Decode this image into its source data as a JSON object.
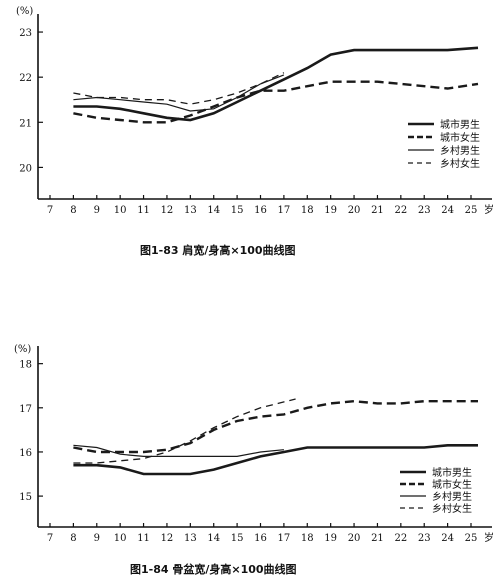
{
  "chart_data": [
    {
      "type": "line",
      "caption": "图1-83   肩宽/身高×100曲线图",
      "unit_label": "(%)",
      "x_unit_label": "岁",
      "x_ticks": [
        "7",
        "8",
        "9",
        "10",
        "11",
        "12",
        "13",
        "14",
        "15",
        "16",
        "17",
        "18",
        "19",
        "20",
        "21",
        "22",
        "23",
        "24",
        "25"
      ],
      "y_ticks": [
        "20",
        "21",
        "22",
        "23"
      ],
      "xlim": [
        7,
        25.8
      ],
      "ylim": [
        19.3,
        23.4
      ],
      "grid": false,
      "legend_position": "right",
      "series": [
        {
          "name": "城市男生",
          "style": "solid-thick",
          "x": [
            8,
            9,
            10,
            11,
            12,
            13,
            14,
            15,
            16,
            17,
            18,
            19,
            20,
            21,
            22,
            23,
            24,
            25.3
          ],
          "y": [
            21.35,
            21.35,
            21.3,
            21.2,
            21.1,
            21.05,
            21.2,
            21.45,
            21.7,
            21.95,
            22.2,
            22.5,
            22.6,
            22.6,
            22.6,
            22.6,
            22.6,
            22.65
          ]
        },
        {
          "name": "城市女生",
          "style": "dashed-thick",
          "x": [
            8,
            9,
            10,
            11,
            12,
            13,
            14,
            15,
            16,
            17,
            18,
            19,
            20,
            21,
            22,
            23,
            24,
            25.3
          ],
          "y": [
            21.2,
            21.1,
            21.05,
            21.0,
            21.0,
            21.15,
            21.35,
            21.55,
            21.7,
            21.7,
            21.8,
            21.9,
            21.9,
            21.9,
            21.85,
            21.8,
            21.75,
            21.85
          ]
        },
        {
          "name": "乡村男生",
          "style": "solid-thin",
          "x": [
            8,
            9,
            10,
            11,
            12,
            13,
            14,
            15,
            16,
            17
          ],
          "y": [
            21.5,
            21.55,
            21.5,
            21.45,
            21.4,
            21.25,
            21.3,
            21.55,
            21.85,
            22.05
          ]
        },
        {
          "name": "乡村女生",
          "style": "dashed-thin",
          "x": [
            8,
            9,
            10,
            11,
            12,
            13,
            14,
            15,
            16,
            17
          ],
          "y": [
            21.65,
            21.55,
            21.55,
            21.5,
            21.5,
            21.4,
            21.5,
            21.65,
            21.85,
            22.1
          ]
        }
      ]
    },
    {
      "type": "line",
      "caption": "图1-84   骨盆宽/身高×100曲线图",
      "unit_label": "(%)",
      "x_unit_label": "岁",
      "x_ticks": [
        "7",
        "8",
        "9",
        "10",
        "11",
        "12",
        "13",
        "14",
        "15",
        "16",
        "17",
        "18",
        "19",
        "20",
        "21",
        "22",
        "23",
        "24",
        "25"
      ],
      "y_ticks": [
        "15",
        "16",
        "17",
        "18"
      ],
      "xlim": [
        7,
        25.8
      ],
      "ylim": [
        14.3,
        18.4
      ],
      "grid": false,
      "legend_position": "right",
      "series": [
        {
          "name": "城市男生",
          "style": "solid-thick",
          "x": [
            8,
            9,
            10,
            11,
            12,
            13,
            14,
            15,
            16,
            17,
            18,
            19,
            20,
            21,
            22,
            23,
            24,
            25.3
          ],
          "y": [
            15.7,
            15.7,
            15.65,
            15.5,
            15.5,
            15.5,
            15.6,
            15.75,
            15.9,
            16.0,
            16.1,
            16.1,
            16.1,
            16.1,
            16.1,
            16.1,
            16.15,
            16.15
          ]
        },
        {
          "name": "城市女生",
          "style": "dashed-thick",
          "x": [
            8,
            9,
            10,
            11,
            12,
            13,
            14,
            15,
            16,
            17,
            18,
            19,
            20,
            21,
            22,
            23,
            24,
            25.3
          ],
          "y": [
            16.1,
            16.0,
            16.0,
            16.0,
            16.05,
            16.2,
            16.5,
            16.7,
            16.8,
            16.85,
            17.0,
            17.1,
            17.15,
            17.1,
            17.1,
            17.15,
            17.15,
            17.15
          ]
        },
        {
          "name": "乡村男生",
          "style": "solid-thin",
          "x": [
            8,
            9,
            10,
            11,
            12,
            13,
            14,
            15,
            16,
            17
          ],
          "y": [
            16.15,
            16.1,
            15.95,
            15.9,
            15.9,
            15.9,
            15.9,
            15.9,
            16.0,
            16.05
          ]
        },
        {
          "name": "乡村女生",
          "style": "dashed-thin",
          "x": [
            8,
            9,
            10,
            11,
            12,
            13,
            14,
            15,
            16,
            17.5
          ],
          "y": [
            15.75,
            15.75,
            15.8,
            15.85,
            16.0,
            16.25,
            16.55,
            16.8,
            17.0,
            17.2
          ]
        }
      ]
    }
  ]
}
